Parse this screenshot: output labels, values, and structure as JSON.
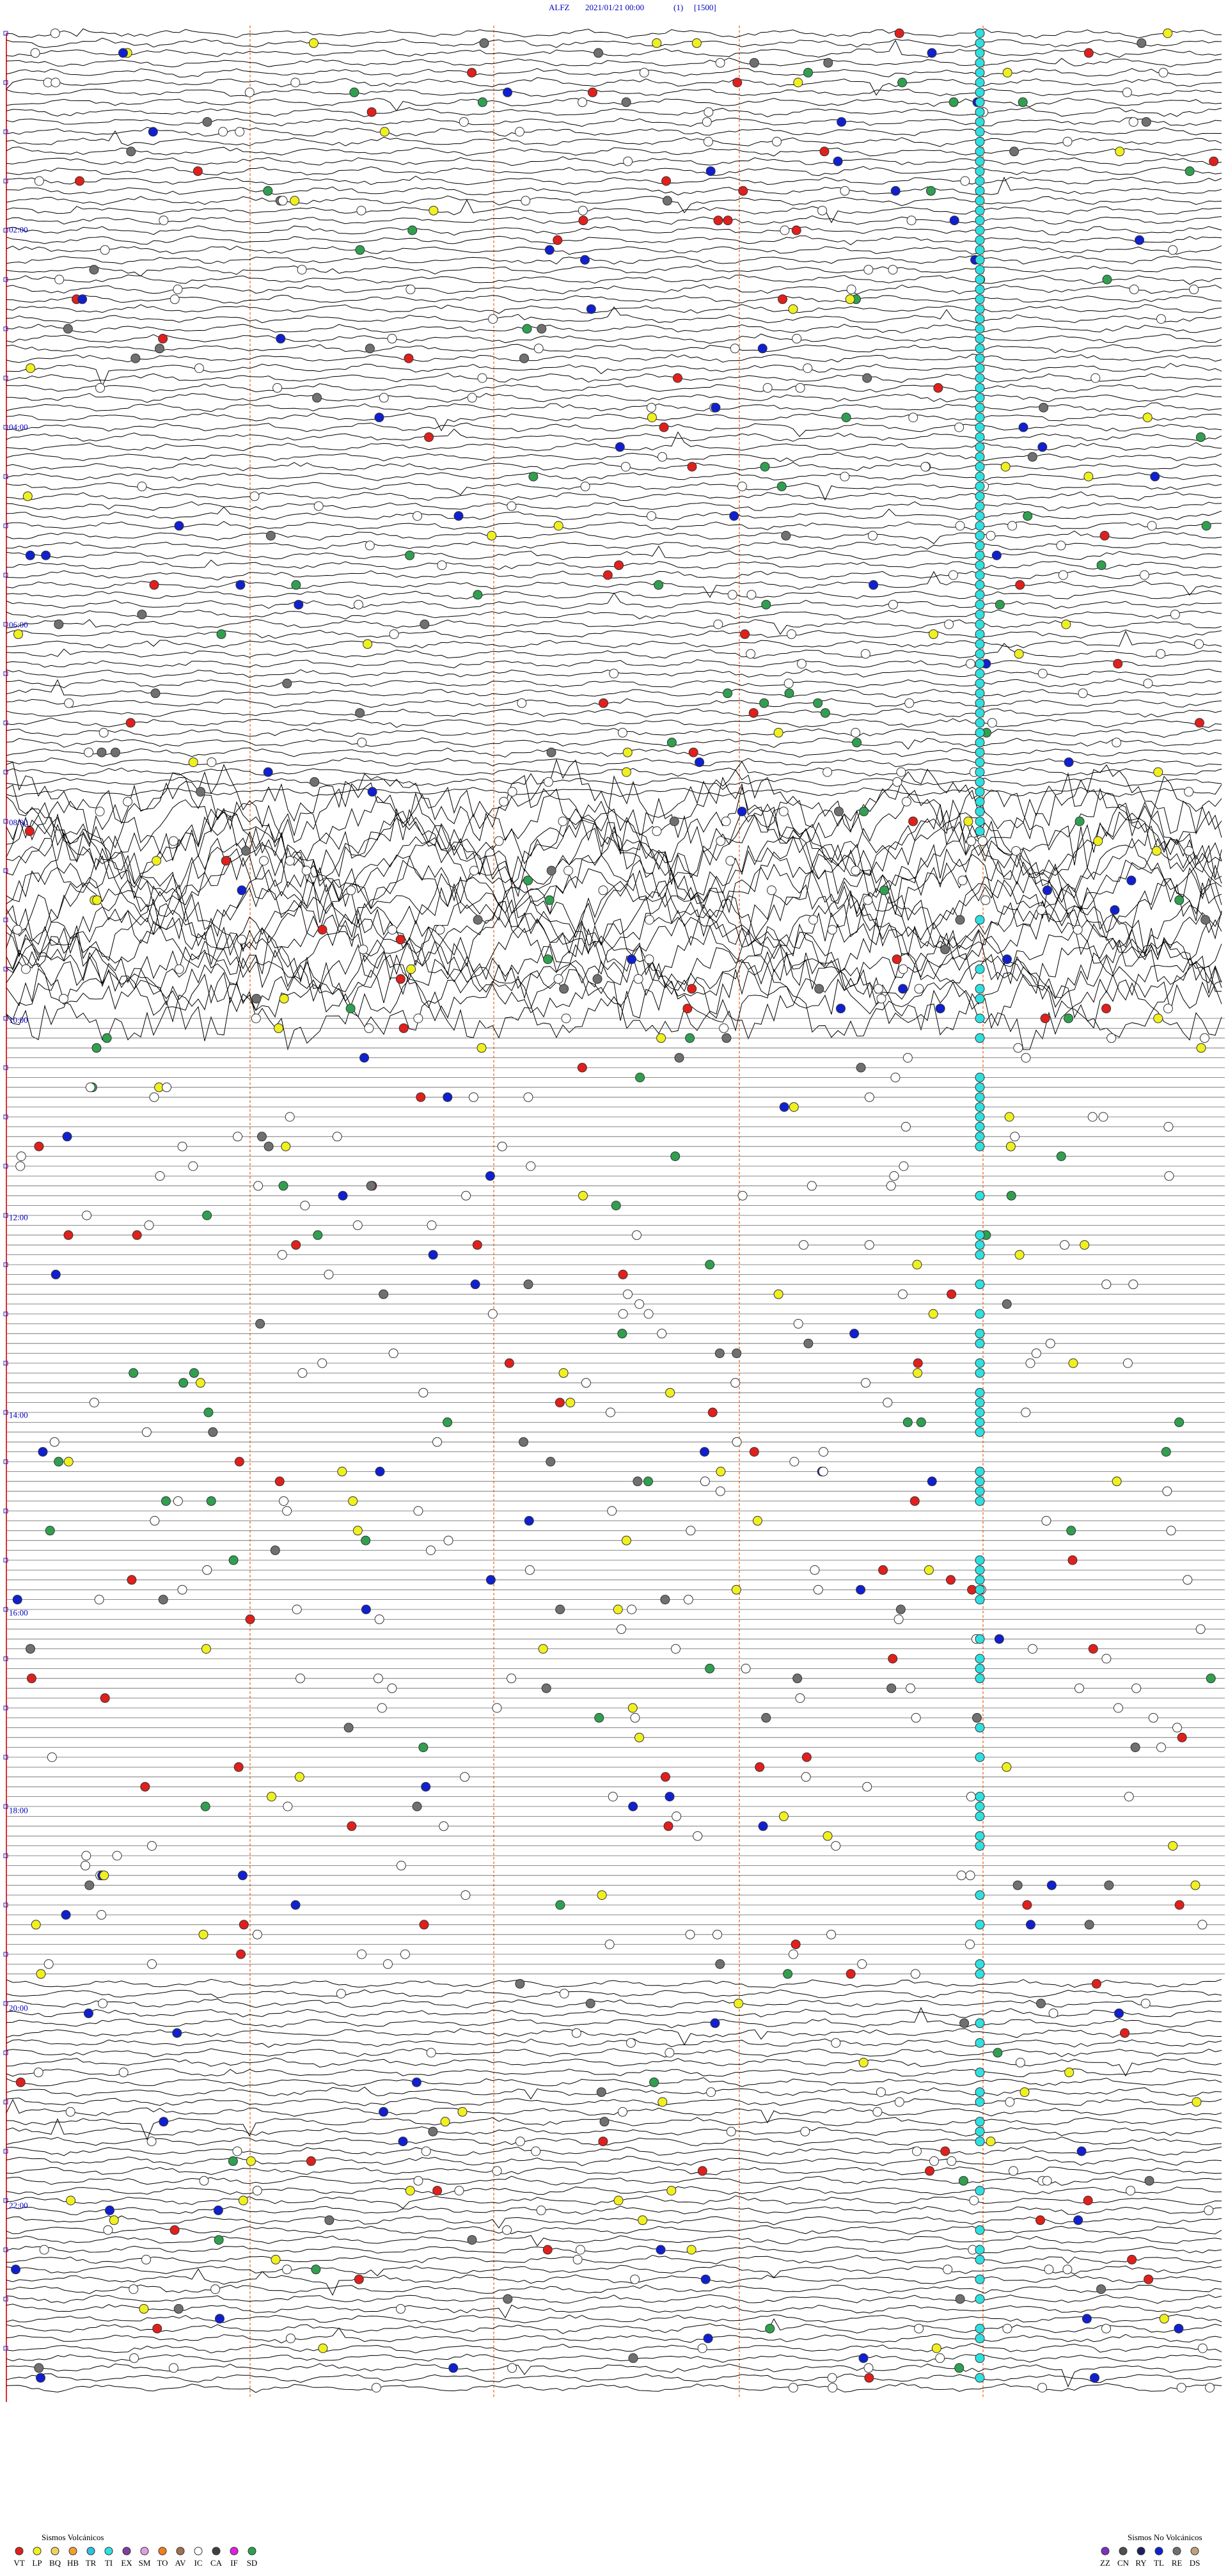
{
  "header": {
    "station": "ALFZ",
    "date": "2021/01/21 00:00",
    "channel": "(1)",
    "scale": "[1500]"
  },
  "time_labels": [
    "02:00",
    "04:00",
    "06:00",
    "08:00",
    "10:00",
    "12:00",
    "14:00",
    "16:00",
    "18:00",
    "20:00",
    "22:00"
  ],
  "legend_volcanic": {
    "title": "Sismos Volcánicos",
    "items": [
      {
        "code": "VT",
        "color": "#e0201c"
      },
      {
        "code": "LP",
        "color": "#f0f020"
      },
      {
        "code": "BQ",
        "color": "#f0d060"
      },
      {
        "code": "HB",
        "color": "#f0a030"
      },
      {
        "code": "TR",
        "color": "#30c0e0"
      },
      {
        "code": "TI",
        "color": "#30e0e0"
      },
      {
        "code": "EX",
        "color": "#8040a0"
      },
      {
        "code": "SM",
        "color": "#e0a0e0"
      },
      {
        "code": "TO",
        "color": "#f08020"
      },
      {
        "code": "AV",
        "color": "#a07050"
      },
      {
        "code": "IC",
        "color": "#ffffff"
      },
      {
        "code": "CA",
        "color": "#404040"
      },
      {
        "code": "IF",
        "color": "#e020e0"
      },
      {
        "code": "SD",
        "color": "#30a050"
      }
    ]
  },
  "legend_nonvolcanic": {
    "title": "Sismos No Volcánicos",
    "items": [
      {
        "code": "ZZ",
        "color": "#8030c0"
      },
      {
        "code": "CN",
        "color": "#505050"
      },
      {
        "code": "RY",
        "color": "#202060"
      },
      {
        "code": "TL",
        "color": "#1020d0"
      },
      {
        "code": "RE",
        "color": "#707070"
      },
      {
        "code": "DS",
        "color": "#c0a080"
      }
    ]
  }
}
